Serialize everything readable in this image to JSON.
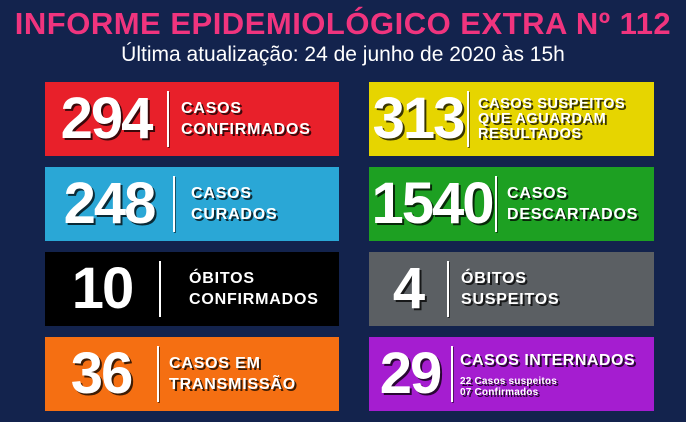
{
  "header": {
    "title": "INFORME EPIDEMIOLÓGICO EXTRA Nº 112",
    "subtitle": "Última atualização: 24 de junho de 2020 às 15h"
  },
  "cards": [
    {
      "number": "294",
      "line1": "CASOS",
      "line2": "CONFIRMADOS",
      "color": "#e8202a"
    },
    {
      "number": "313",
      "line1": "CASOS SUSPEITOS",
      "line2": "QUE AGUARDAM",
      "line3": "RESULTADOS",
      "color": "#e6d500"
    },
    {
      "number": "248",
      "line1": "CASOS",
      "line2": "CURADOS",
      "color": "#2aa7d6"
    },
    {
      "number": "1540",
      "line1": "CASOS",
      "line2": "DESCARTADOS",
      "color": "#1da022"
    },
    {
      "number": "10",
      "line1": "ÓBITOS",
      "line2": "CONFIRMADOS",
      "color": "#000000"
    },
    {
      "number": "4",
      "line1": "ÓBITOS",
      "line2": "SUSPEITOS",
      "color": "#5b5f63"
    },
    {
      "number": "36",
      "line1": "CASOS EM",
      "line2": "TRANSMISSÃO",
      "color": "#f56f12"
    },
    {
      "number": "29",
      "line1": "CASOS INTERNADOS",
      "sub1": "22 Casos suspeitos",
      "sub2": "07 Confirmados",
      "color": "#a51dd0"
    }
  ]
}
